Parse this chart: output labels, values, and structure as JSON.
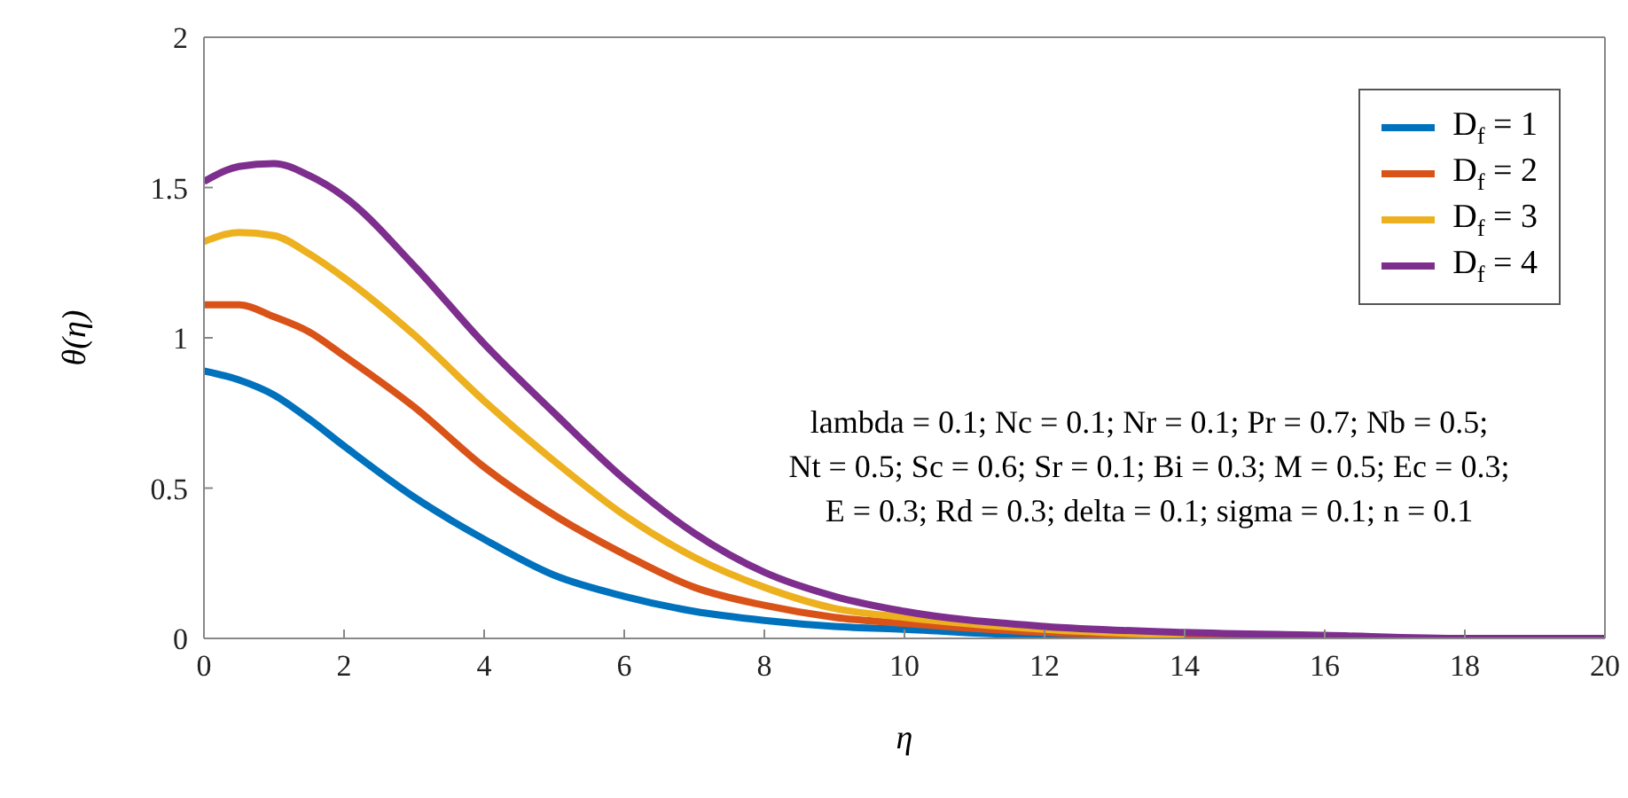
{
  "chart_data": {
    "type": "line",
    "xlabel": "η",
    "ylabel": "θ(η)",
    "x": [
      0,
      0.5,
      1,
      1.5,
      2,
      3,
      4,
      5,
      6,
      7,
      8,
      9,
      10,
      12,
      14,
      16,
      18,
      20
    ],
    "series": [
      {
        "name": "D$_{f}$ = 1",
        "color": "#0072bd",
        "values": [
          0.89,
          0.86,
          0.81,
          0.73,
          0.64,
          0.47,
          0.33,
          0.21,
          0.14,
          0.09,
          0.06,
          0.04,
          0.03,
          0.01,
          0.01,
          null,
          null,
          null
        ]
      },
      {
        "name": "D$_{f}$ = 2",
        "color": "#d95319",
        "values": [
          1.11,
          1.11,
          1.07,
          1.02,
          0.94,
          0.77,
          0.57,
          0.41,
          0.28,
          0.17,
          0.11,
          0.07,
          0.05,
          0.02,
          0.01,
          0,
          null,
          null
        ]
      },
      {
        "name": "D$_{f}$ = 3",
        "color": "#edb120",
        "values": [
          1.32,
          1.35,
          1.34,
          1.28,
          1.2,
          1.01,
          0.79,
          0.59,
          0.41,
          0.27,
          0.17,
          0.1,
          0.07,
          0.03,
          0.01,
          null,
          null,
          null
        ]
      },
      {
        "name": "D$_{f}$ = 4",
        "color": "#7e2f8e",
        "values": [
          1.52,
          1.57,
          1.58,
          1.54,
          1.47,
          1.24,
          0.98,
          0.75,
          0.53,
          0.35,
          0.22,
          0.14,
          0.09,
          0.04,
          0.02,
          0.01,
          0,
          0
        ]
      }
    ],
    "xlim": [
      0,
      20
    ],
    "xticks": [
      0,
      2,
      4,
      6,
      8,
      10,
      12,
      14,
      16,
      18,
      20
    ],
    "ylim": [
      0,
      2
    ],
    "yticks": [
      0,
      0.5,
      1,
      1.5,
      2
    ],
    "grid": false,
    "legend": "top right",
    "annotations": [
      "lambda = 0.1; Nc = 0.1; Nr = 0.1; Pr = 0.7; Nb = 0.5;",
      "Nt = 0.5; Sc = 0.6; Sr = 0.1; Bi = 0.3; M = 0.5; Ec = 0.3;",
      "E = 0.3; Rd = 0.3; delta = 0.1; sigma = 0.1; n = 0.1"
    ]
  }
}
